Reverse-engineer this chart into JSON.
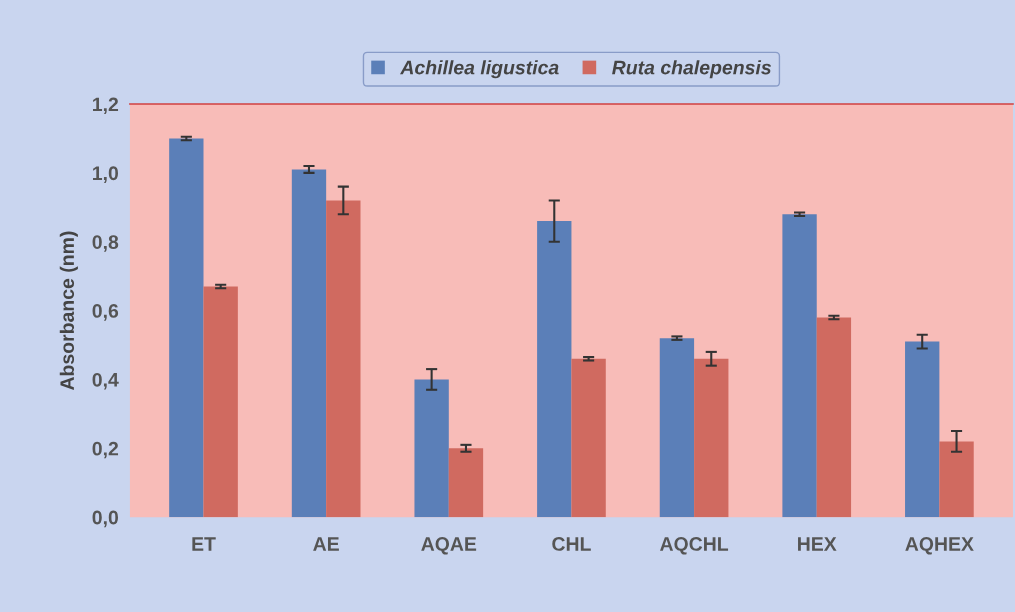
{
  "chart_data": {
    "type": "bar",
    "ylabel": "Absorbance (nm)",
    "categories": [
      "ET",
      "AE",
      "AQAE",
      "CHL",
      "AQCHL",
      "HEX",
      "AQHEX"
    ],
    "series": [
      {
        "name": "Achillea ligustica",
        "color": "#5b7fb8",
        "values": [
          1.1,
          1.01,
          0.4,
          0.86,
          0.52,
          0.88,
          0.51
        ],
        "errors": [
          0.005,
          0.01,
          0.03,
          0.06,
          0.005,
          0.005,
          0.02
        ]
      },
      {
        "name": "Ruta chalepensis",
        "color": "#d06a60",
        "values": [
          0.67,
          0.92,
          0.2,
          0.46,
          0.46,
          0.58,
          0.22
        ],
        "errors": [
          0.005,
          0.04,
          0.01,
          0.005,
          0.02,
          0.005,
          0.03
        ]
      }
    ],
    "ylim": [
      0,
      1.2
    ],
    "yticks": [
      {
        "value": 0,
        "label": "0,0"
      },
      {
        "value": 0.2,
        "label": "0,2"
      },
      {
        "value": 0.4,
        "label": "0,4"
      },
      {
        "value": 0.6,
        "label": "0,6"
      },
      {
        "value": 0.8,
        "label": "0,8"
      },
      {
        "value": 1.0,
        "label": "1,0"
      },
      {
        "value": 1.2,
        "label": "1,2"
      }
    ],
    "grid": false,
    "legend": "top"
  }
}
